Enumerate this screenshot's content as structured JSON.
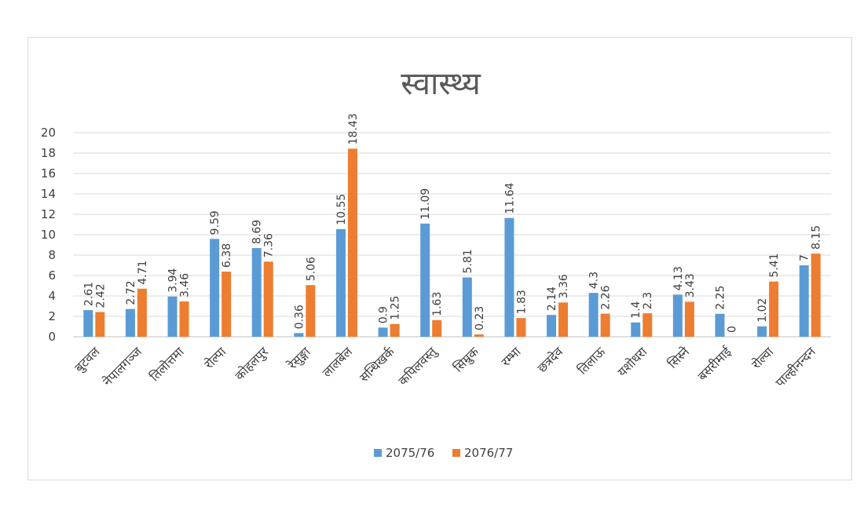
{
  "chart_data": {
    "type": "bar",
    "title": "स्वास्थ्य",
    "categories": [
      "बुटवल",
      "नेपालगञ्ज",
      "तिलोत्तमा",
      "रोल्पा",
      "कोहलपुर",
      "रेसुङ्गा",
      "लालबेल",
      "सन्धिखर्क",
      "कपिलवस्तु",
      "सिम्रुक",
      "रम्भा",
      "छत्रदेव",
      "तिलाऊ",
      "यशोधरा",
      "सिस्ने",
      "बसरीमाई",
      "रोल्वा",
      "पाल्हीनन्दन"
    ],
    "series": [
      {
        "name": "2075/76",
        "color": "#5B9BD5",
        "values": [
          2.61,
          2.72,
          3.94,
          9.59,
          8.69,
          0.36,
          10.55,
          0.9,
          11.09,
          5.81,
          11.64,
          2.14,
          4.3,
          1.4,
          4.13,
          2.25,
          1.02,
          7
        ]
      },
      {
        "name": "2076/77",
        "color": "#ED7D31",
        "values": [
          2.42,
          4.71,
          3.46,
          6.38,
          7.36,
          5.06,
          18.43,
          1.25,
          1.63,
          0.23,
          1.83,
          3.36,
          2.26,
          2.3,
          3.43,
          0,
          5.41,
          8.15
        ]
      }
    ],
    "yticks": [
      0,
      2,
      4,
      6,
      8,
      10,
      12,
      14,
      16,
      18,
      20
    ],
    "ylim": [
      0,
      20
    ],
    "grid": true,
    "legend": "bottom"
  }
}
